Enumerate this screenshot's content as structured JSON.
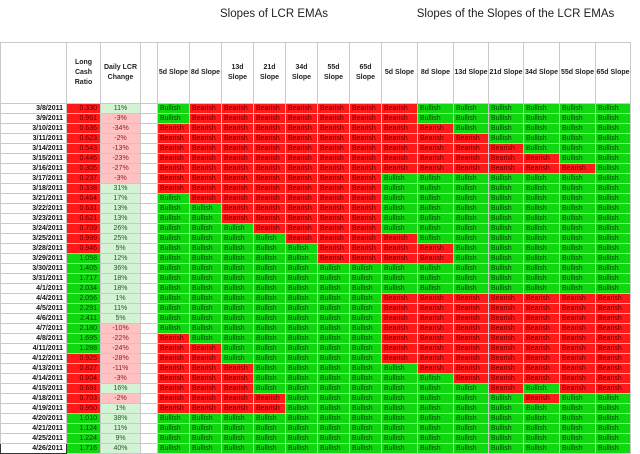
{
  "groups": {
    "lcr_slopes_title": "Slopes of LCR EMAs",
    "slope_of_slope_title": "Slopes of the Slopes of the LCR EMAs"
  },
  "headers": {
    "date": "",
    "lcr": "Long Cash Ratio",
    "change": "Daily LCR Change",
    "slopes": [
      "5d Slope",
      "8d Slope",
      "13d Slope",
      "21d Slope",
      "34d Slope",
      "55d Slope",
      "65d Slope"
    ],
    "slopes2": [
      "5d Slope",
      "8d Slope",
      "13d Slope",
      "21d Slope",
      "34d Slope",
      "55d Slope",
      "65d Slope"
    ]
  },
  "colors": {
    "bullish": "#11d711",
    "bearish": "#ff1a1a",
    "neg_change": "#ffc1c1",
    "pos_change": "#d4f2d4"
  },
  "rows": [
    {
      "date": "3/8/2011",
      "lcr": "0.330",
      "chg": "11%",
      "s": [
        "Bullish",
        "Bearish",
        "Bearish",
        "Bearish",
        "Bearish",
        "Bearish",
        "Bearish"
      ],
      "ss": [
        "Bearish",
        "Bullish",
        "Bullish",
        "Bullish",
        "Bullish",
        "Bullish",
        "Bullish"
      ]
    },
    {
      "date": "3/9/2011",
      "lcr": "0.961",
      "chg": "-3%",
      "s": [
        "Bullish",
        "Bearish",
        "Bearish",
        "Bearish",
        "Bearish",
        "Bearish",
        "Bearish"
      ],
      "ss": [
        "Bearish",
        "Bullish",
        "Bullish",
        "Bullish",
        "Bullish",
        "Bullish",
        "Bullish"
      ]
    },
    {
      "date": "3/10/2011",
      "lcr": "0.636",
      "chg": "-34%",
      "s": [
        "Bearish",
        "Bearish",
        "Bearish",
        "Bearish",
        "Bearish",
        "Bearish",
        "Bearish"
      ],
      "ss": [
        "Bearish",
        "Bearish",
        "Bullish",
        "Bullish",
        "Bullish",
        "Bullish",
        "Bullish"
      ]
    },
    {
      "date": "3/11/2011",
      "lcr": "0.623",
      "chg": "-2%",
      "s": [
        "Bearish",
        "Bearish",
        "Bearish",
        "Bearish",
        "Bearish",
        "Bearish",
        "Bearish"
      ],
      "ss": [
        "Bearish",
        "Bearish",
        "Bearish",
        "Bullish",
        "Bullish",
        "Bullish",
        "Bullish"
      ]
    },
    {
      "date": "3/14/2011",
      "lcr": "0.543",
      "chg": "-13%",
      "s": [
        "Bearish",
        "Bearish",
        "Bearish",
        "Bearish",
        "Bearish",
        "Bearish",
        "Bearish"
      ],
      "ss": [
        "Bearish",
        "Bearish",
        "Bearish",
        "Bearish",
        "Bullish",
        "Bullish",
        "Bullish"
      ]
    },
    {
      "date": "3/15/2011",
      "lcr": "0.446",
      "chg": "-23%",
      "s": [
        "Bearish",
        "Bearish",
        "Bearish",
        "Bearish",
        "Bearish",
        "Bearish",
        "Bearish"
      ],
      "ss": [
        "Bearish",
        "Bearish",
        "Bearish",
        "Bearish",
        "Bearish",
        "Bullish",
        "Bullish"
      ]
    },
    {
      "date": "3/16/2011",
      "lcr": "0.305",
      "chg": "-27%",
      "s": [
        "Bearish",
        "Bearish",
        "Bearish",
        "Bearish",
        "Bearish",
        "Bearish",
        "Bearish"
      ],
      "ss": [
        "Bearish",
        "Bearish",
        "Bearish",
        "Bearish",
        "Bearish",
        "Bearish",
        "Bullish"
      ]
    },
    {
      "date": "3/17/2011",
      "lcr": "0.237",
      "chg": "-3%",
      "s": [
        "Bearish",
        "Bearish",
        "Bearish",
        "Bearish",
        "Bearish",
        "Bearish",
        "Bearish"
      ],
      "ss": [
        "Bullish",
        "Bullish",
        "Bullish",
        "Bullish",
        "Bullish",
        "Bullish",
        "Bullish"
      ]
    },
    {
      "date": "3/18/2011",
      "lcr": "0.338",
      "chg": "31%",
      "s": [
        "Bearish",
        "Bearish",
        "Bearish",
        "Bearish",
        "Bearish",
        "Bearish",
        "Bearish"
      ],
      "ss": [
        "Bullish",
        "Bullish",
        "Bullish",
        "Bullish",
        "Bullish",
        "Bullish",
        "Bullish"
      ]
    },
    {
      "date": "3/21/2011",
      "lcr": "0.464",
      "chg": "17%",
      "s": [
        "Bullish",
        "Bearish",
        "Bearish",
        "Bearish",
        "Bearish",
        "Bearish",
        "Bearish"
      ],
      "ss": [
        "Bullish",
        "Bullish",
        "Bullish",
        "Bullish",
        "Bullish",
        "Bullish",
        "Bullish"
      ]
    },
    {
      "date": "3/22/2011",
      "lcr": "0.631",
      "chg": "13%",
      "s": [
        "Bullish",
        "Bullish",
        "Bearish",
        "Bearish",
        "Bearish",
        "Bearish",
        "Bearish"
      ],
      "ss": [
        "Bullish",
        "Bullish",
        "Bullish",
        "Bullish",
        "Bullish",
        "Bullish",
        "Bullish"
      ]
    },
    {
      "date": "3/23/2011",
      "lcr": "0.621",
      "chg": "13%",
      "s": [
        "Bullish",
        "Bullish",
        "Bearish",
        "Bearish",
        "Bearish",
        "Bearish",
        "Bearish"
      ],
      "ss": [
        "Bullish",
        "Bullish",
        "Bullish",
        "Bullish",
        "Bullish",
        "Bullish",
        "Bullish"
      ]
    },
    {
      "date": "3/24/2011",
      "lcr": "0.709",
      "chg": "26%",
      "s": [
        "Bullish",
        "Bullish",
        "Bullish",
        "Bearish",
        "Bearish",
        "Bearish",
        "Bearish"
      ],
      "ss": [
        "Bullish",
        "Bullish",
        "Bullish",
        "Bullish",
        "Bullish",
        "Bullish",
        "Bullish"
      ]
    },
    {
      "date": "3/25/2011",
      "lcr": "0.999",
      "chg": "25%",
      "s": [
        "Bullish",
        "Bullish",
        "Bullish",
        "Bullish",
        "Bearish",
        "Bearish",
        "Bearish"
      ],
      "ss": [
        "Bearish",
        "Bullish",
        "Bullish",
        "Bullish",
        "Bullish",
        "Bullish",
        "Bullish"
      ]
    },
    {
      "date": "3/28/2011",
      "lcr": "0.946",
      "chg": "5%",
      "s": [
        "Bullish",
        "Bullish",
        "Bullish",
        "Bullish",
        "Bullish",
        "Bearish",
        "Bearish"
      ],
      "ss": [
        "Bearish",
        "Bearish",
        "Bullish",
        "Bullish",
        "Bullish",
        "Bullish",
        "Bullish"
      ]
    },
    {
      "date": "3/29/2011",
      "lcr": "1.058",
      "chg": "12%",
      "s": [
        "Bullish",
        "Bullish",
        "Bullish",
        "Bullish",
        "Bullish",
        "Bearish",
        "Bearish"
      ],
      "ss": [
        "Bearish",
        "Bearish",
        "Bullish",
        "Bullish",
        "Bullish",
        "Bullish",
        "Bullish"
      ]
    },
    {
      "date": "3/30/2011",
      "lcr": "1.405",
      "chg": "36%",
      "s": [
        "Bullish",
        "Bullish",
        "Bullish",
        "Bullish",
        "Bullish",
        "Bullish",
        "Bullish"
      ],
      "ss": [
        "Bullish",
        "Bullish",
        "Bullish",
        "Bullish",
        "Bullish",
        "Bullish",
        "Bullish"
      ]
    },
    {
      "date": "3/31/2011",
      "lcr": "1.717",
      "chg": "18%",
      "s": [
        "Bullish",
        "Bullish",
        "Bullish",
        "Bullish",
        "Bullish",
        "Bullish",
        "Bullish"
      ],
      "ss": [
        "Bullish",
        "Bullish",
        "Bullish",
        "Bullish",
        "Bullish",
        "Bullish",
        "Bullish"
      ]
    },
    {
      "date": "4/1/2011",
      "lcr": "2.034",
      "chg": "18%",
      "s": [
        "Bullish",
        "Bullish",
        "Bullish",
        "Bullish",
        "Bullish",
        "Bullish",
        "Bullish"
      ],
      "ss": [
        "Bullish",
        "Bullish",
        "Bullish",
        "Bullish",
        "Bullish",
        "Bullish",
        "Bullish"
      ]
    },
    {
      "date": "4/4/2011",
      "lcr": "2.056",
      "chg": "1%",
      "s": [
        "Bullish",
        "Bullish",
        "Bullish",
        "Bullish",
        "Bullish",
        "Bullish",
        "Bullish"
      ],
      "ss": [
        "Bearish",
        "Bearish",
        "Bearish",
        "Bearish",
        "Bearish",
        "Bearish",
        "Bearish"
      ]
    },
    {
      "date": "4/5/2011",
      "lcr": "2.291",
      "chg": "11%",
      "s": [
        "Bullish",
        "Bullish",
        "Bullish",
        "Bullish",
        "Bullish",
        "Bullish",
        "Bullish"
      ],
      "ss": [
        "Bearish",
        "Bearish",
        "Bearish",
        "Bearish",
        "Bearish",
        "Bearish",
        "Bearish"
      ]
    },
    {
      "date": "4/6/2011",
      "lcr": "2.411",
      "chg": "5%",
      "s": [
        "Bullish",
        "Bullish",
        "Bullish",
        "Bullish",
        "Bullish",
        "Bullish",
        "Bullish"
      ],
      "ss": [
        "Bearish",
        "Bearish",
        "Bearish",
        "Bearish",
        "Bearish",
        "Bearish",
        "Bearish"
      ]
    },
    {
      "date": "4/7/2011",
      "lcr": "2.180",
      "chg": "-10%",
      "s": [
        "Bullish",
        "Bullish",
        "Bullish",
        "Bullish",
        "Bullish",
        "Bullish",
        "Bullish"
      ],
      "ss": [
        "Bearish",
        "Bearish",
        "Bearish",
        "Bearish",
        "Bearish",
        "Bearish",
        "Bearish"
      ]
    },
    {
      "date": "4/8/2011",
      "lcr": "1.695",
      "chg": "-22%",
      "s": [
        "Bearish",
        "Bullish",
        "Bullish",
        "Bullish",
        "Bullish",
        "Bullish",
        "Bullish"
      ],
      "ss": [
        "Bearish",
        "Bearish",
        "Bearish",
        "Bearish",
        "Bearish",
        "Bearish",
        "Bearish"
      ]
    },
    {
      "date": "4/11/2011",
      "lcr": "1.288",
      "chg": "-24%",
      "s": [
        "Bearish",
        "Bearish",
        "Bullish",
        "Bullish",
        "Bullish",
        "Bullish",
        "Bullish"
      ],
      "ss": [
        "Bearish",
        "Bearish",
        "Bearish",
        "Bearish",
        "Bearish",
        "Bearish",
        "Bearish"
      ]
    },
    {
      "date": "4/12/2011",
      "lcr": "0.925",
      "chg": "-28%",
      "s": [
        "Bearish",
        "Bearish",
        "Bullish",
        "Bullish",
        "Bullish",
        "Bullish",
        "Bullish"
      ],
      "ss": [
        "Bearish",
        "Bearish",
        "Bearish",
        "Bearish",
        "Bearish",
        "Bearish",
        "Bearish"
      ]
    },
    {
      "date": "4/13/2011",
      "lcr": "0.827",
      "chg": "-11%",
      "s": [
        "Bearish",
        "Bearish",
        "Bearish",
        "Bullish",
        "Bullish",
        "Bullish",
        "Bullish"
      ],
      "ss": [
        "Bullish",
        "Bearish",
        "Bearish",
        "Bearish",
        "Bearish",
        "Bearish",
        "Bearish"
      ]
    },
    {
      "date": "4/14/2011",
      "lcr": "0.904",
      "chg": "-3%",
      "s": [
        "Bearish",
        "Bearish",
        "Bearish",
        "Bullish",
        "Bullish",
        "Bullish",
        "Bullish"
      ],
      "ss": [
        "Bullish",
        "Bullish",
        "Bearish",
        "Bearish",
        "Bearish",
        "Bearish",
        "Bearish"
      ]
    },
    {
      "date": "4/15/2011",
      "lcr": "0.691",
      "chg": "16%",
      "s": [
        "Bearish",
        "Bearish",
        "Bearish",
        "Bullish",
        "Bullish",
        "Bullish",
        "Bullish"
      ],
      "ss": [
        "Bullish",
        "Bullish",
        "Bullish",
        "Bearish",
        "Bullish",
        "Bearish",
        "Bearish"
      ]
    },
    {
      "date": "4/18/2011",
      "lcr": "0.703",
      "chg": "-2%",
      "s": [
        "Bearish",
        "Bearish",
        "Bearish",
        "Bearish",
        "Bullish",
        "Bullish",
        "Bullish"
      ],
      "ss": [
        "Bullish",
        "Bullish",
        "Bullish",
        "Bullish",
        "Bearish",
        "Bullish",
        "Bullish"
      ]
    },
    {
      "date": "4/19/2011",
      "lcr": "0.950",
      "chg": "1%",
      "s": [
        "Bearish",
        "Bearish",
        "Bearish",
        "Bearish",
        "Bullish",
        "Bullish",
        "Bullish"
      ],
      "ss": [
        "Bullish",
        "Bullish",
        "Bullish",
        "Bullish",
        "Bullish",
        "Bullish",
        "Bullish"
      ]
    },
    {
      "date": "4/20/2011",
      "lcr": "1.010",
      "chg": "38%",
      "s": [
        "Bullish",
        "Bullish",
        "Bullish",
        "Bullish",
        "Bullish",
        "Bullish",
        "Bullish"
      ],
      "ss": [
        "Bullish",
        "Bullish",
        "Bullish",
        "Bullish",
        "Bullish",
        "Bullish",
        "Bullish"
      ]
    },
    {
      "date": "4/21/2011",
      "lcr": "1.124",
      "chg": "11%",
      "s": [
        "Bullish",
        "Bullish",
        "Bullish",
        "Bullish",
        "Bullish",
        "Bullish",
        "Bullish"
      ],
      "ss": [
        "Bullish",
        "Bullish",
        "Bullish",
        "Bullish",
        "Bullish",
        "Bullish",
        "Bullish"
      ]
    },
    {
      "date": "4/25/2011",
      "lcr": "1.224",
      "chg": "9%",
      "s": [
        "Bullish",
        "Bullish",
        "Bullish",
        "Bullish",
        "Bullish",
        "Bullish",
        "Bullish"
      ],
      "ss": [
        "Bullish",
        "Bullish",
        "Bullish",
        "Bullish",
        "Bullish",
        "Bullish",
        "Bullish"
      ]
    },
    {
      "date": "4/26/2011",
      "lcr": "1.716",
      "chg": "40%",
      "s": [
        "Bullish",
        "Bullish",
        "Bullish",
        "Bullish",
        "Bullish",
        "Bullish",
        "Bullish"
      ],
      "ss": [
        "Bullish",
        "Bullish",
        "Bullish",
        "Bullish",
        "Bullish",
        "Bullish",
        "Bullish"
      ]
    }
  ]
}
